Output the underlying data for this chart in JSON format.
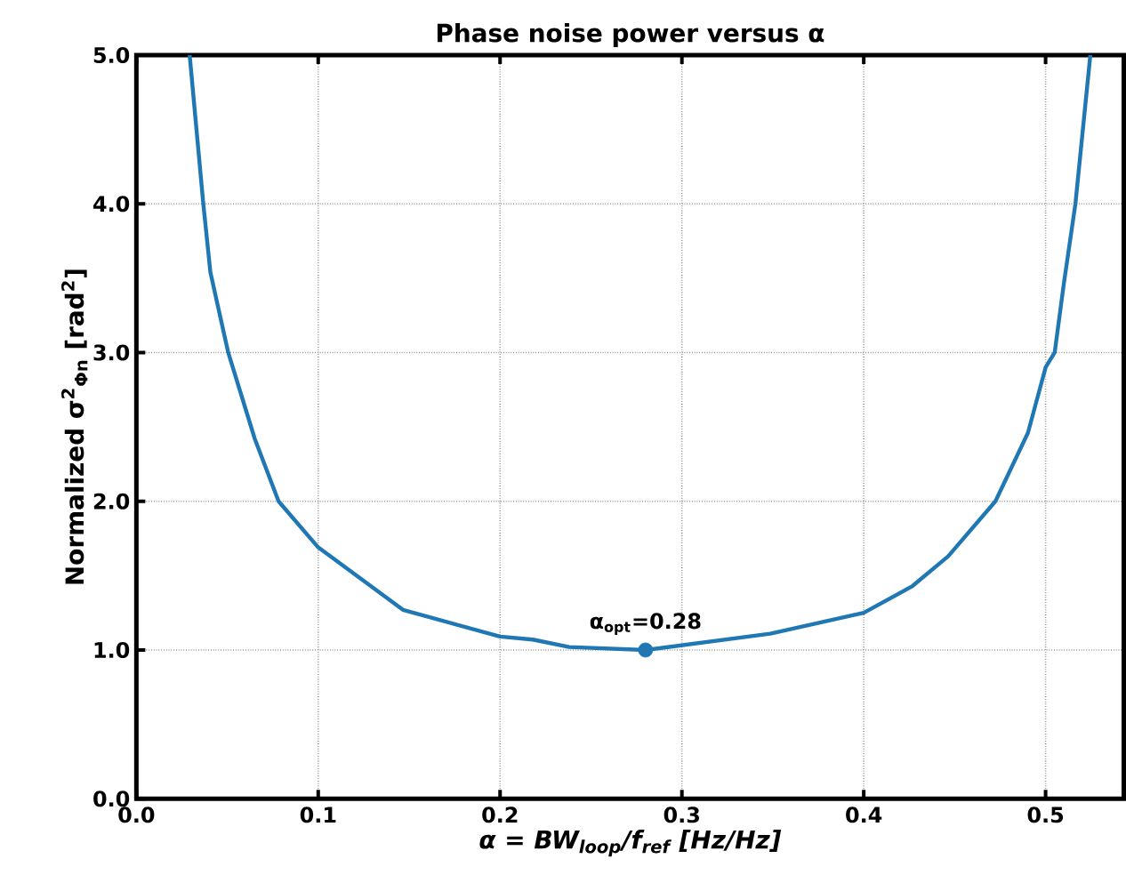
{
  "chart_data": {
    "type": "line",
    "title": "Phase noise power versus α",
    "xlabel": "α = BW$_{loop}$/f$_{ref}$ [Hz/Hz]",
    "ylabel": "Normalized σ$^{2}$$_{Φn}$ [rad$^{2}$]",
    "xlim": [
      0,
      0.543
    ],
    "ylim": [
      0,
      5
    ],
    "xticks": [
      {
        "value": 0,
        "label": "0.0"
      },
      {
        "value": 0.1,
        "label": "0.1"
      },
      {
        "value": 0.2,
        "label": "0.2"
      },
      {
        "value": 0.3,
        "label": "0.3"
      },
      {
        "value": 0.4,
        "label": "0.4"
      },
      {
        "value": 0.5,
        "label": "0.5"
      }
    ],
    "yticks": [
      {
        "value": 0,
        "label": "0.0"
      },
      {
        "value": 1,
        "label": "1.0"
      },
      {
        "value": 2,
        "label": "2.0"
      },
      {
        "value": 3,
        "label": "3.0"
      },
      {
        "value": 4,
        "label": "4.0"
      },
      {
        "value": 5,
        "label": "5.0"
      }
    ],
    "grid": true,
    "series": [
      {
        "color": "#1f77b4",
        "x": [
          0.0293,
          0.0368,
          0.0407,
          0.0505,
          0.0651,
          0.0782,
          0.1,
          0.1466,
          0.2,
          0.218,
          0.238,
          0.28,
          0.3486,
          0.4,
          0.4268,
          0.4464,
          0.4724,
          0.4903,
          0.5,
          0.505,
          0.51,
          0.5164,
          0.5246
        ],
        "values": [
          5,
          4,
          3.54,
          3,
          2.42,
          2,
          1.69,
          1.27,
          1.09,
          1.07,
          1.02,
          1.0,
          1.11,
          1.25,
          1.43,
          1.63,
          2.0,
          2.46,
          2.9,
          3,
          3.46,
          4,
          5
        ]
      },
      {
        "type": "scatter",
        "marker": "circle",
        "color": "#1f77b4",
        "x": [
          0.28
        ],
        "values": [
          1.0
        ]
      }
    ],
    "annotations": [
      {
        "text": "α$_{opt}$=0.28",
        "x": 0.28,
        "y": 1.0
      }
    ]
  }
}
